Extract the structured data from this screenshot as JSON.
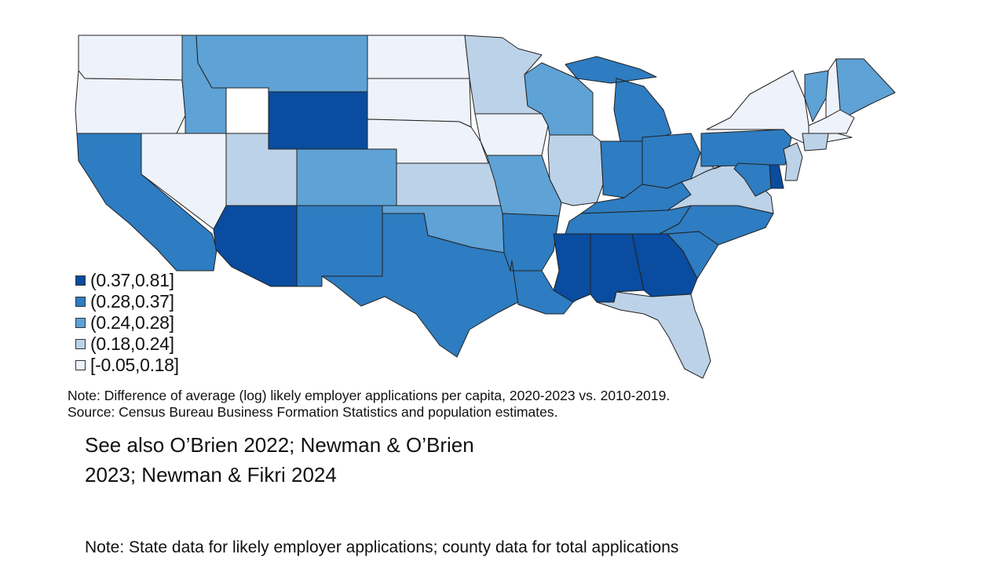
{
  "colors": {
    "bin1": "#0a4c9f",
    "bin2": "#2e7cc1",
    "bin3": "#5ea2d6",
    "bin4": "#bcd2e8",
    "bin5": "#eef2fa"
  },
  "legend": {
    "items": [
      {
        "label": "(0.37,0.81]",
        "bin": "bin1"
      },
      {
        "label": "(0.28,0.37]",
        "bin": "bin2"
      },
      {
        "label": "(0.24,0.28]",
        "bin": "bin3"
      },
      {
        "label": "(0.18,0.24]",
        "bin": "bin4"
      },
      {
        "label": "[-0.05,0.18]",
        "bin": "bin5"
      }
    ]
  },
  "states": [
    {
      "name": "WA",
      "bin": "bin5"
    },
    {
      "name": "OR",
      "bin": "bin5"
    },
    {
      "name": "CA",
      "bin": "bin2"
    },
    {
      "name": "NV",
      "bin": "bin5"
    },
    {
      "name": "ID",
      "bin": "bin3"
    },
    {
      "name": "MT",
      "bin": "bin3"
    },
    {
      "name": "WY",
      "bin": "bin1"
    },
    {
      "name": "UT",
      "bin": "bin4"
    },
    {
      "name": "CO",
      "bin": "bin3"
    },
    {
      "name": "AZ",
      "bin": "bin1"
    },
    {
      "name": "NM",
      "bin": "bin2"
    },
    {
      "name": "ND",
      "bin": "bin5"
    },
    {
      "name": "SD",
      "bin": "bin5"
    },
    {
      "name": "NE",
      "bin": "bin5"
    },
    {
      "name": "KS",
      "bin": "bin4"
    },
    {
      "name": "OK",
      "bin": "bin3"
    },
    {
      "name": "TX",
      "bin": "bin2"
    },
    {
      "name": "MN",
      "bin": "bin4"
    },
    {
      "name": "IA",
      "bin": "bin5"
    },
    {
      "name": "MO",
      "bin": "bin3"
    },
    {
      "name": "AR",
      "bin": "bin2"
    },
    {
      "name": "LA",
      "bin": "bin2"
    },
    {
      "name": "WI",
      "bin": "bin3"
    },
    {
      "name": "IL",
      "bin": "bin4"
    },
    {
      "name": "MI",
      "bin": "bin2"
    },
    {
      "name": "IN",
      "bin": "bin2"
    },
    {
      "name": "OH",
      "bin": "bin2"
    },
    {
      "name": "KY",
      "bin": "bin2"
    },
    {
      "name": "TN",
      "bin": "bin2"
    },
    {
      "name": "MS",
      "bin": "bin1"
    },
    {
      "name": "AL",
      "bin": "bin1"
    },
    {
      "name": "GA",
      "bin": "bin1"
    },
    {
      "name": "FL",
      "bin": "bin4"
    },
    {
      "name": "SC",
      "bin": "bin2"
    },
    {
      "name": "NC",
      "bin": "bin2"
    },
    {
      "name": "VA",
      "bin": "bin4"
    },
    {
      "name": "WV",
      "bin": "bin4"
    },
    {
      "name": "PA",
      "bin": "bin2"
    },
    {
      "name": "NY",
      "bin": "bin5"
    },
    {
      "name": "VT",
      "bin": "bin3"
    },
    {
      "name": "NH",
      "bin": "bin5"
    },
    {
      "name": "ME",
      "bin": "bin3"
    },
    {
      "name": "MA",
      "bin": "bin5"
    },
    {
      "name": "CT",
      "bin": "bin4"
    },
    {
      "name": "NJ",
      "bin": "bin4"
    },
    {
      "name": "DE",
      "bin": "bin1"
    },
    {
      "name": "MD",
      "bin": "bin2"
    }
  ],
  "notes": {
    "line1": "Note: Difference of average (log) likely employer applications per capita, 2020-2023 vs. 2010-2019.",
    "line2": "Source: Census Bureau Business Formation Statistics and population estimates."
  },
  "see_also": {
    "line1": "See also O’Brien 2022; Newman & O’Brien",
    "line2": "2023; Newman & Fikri 2024"
  },
  "bottom_note": "Note: State data for likely employer applications; county data for total applications"
}
